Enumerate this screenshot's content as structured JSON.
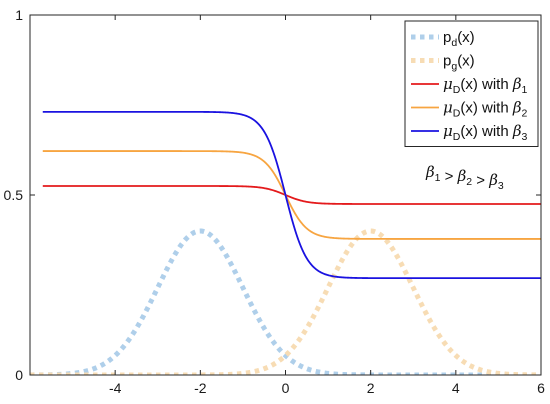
{
  "chart_data": {
    "type": "line",
    "title": "",
    "xlabel": "",
    "ylabel": "",
    "xlim": [
      -6,
      6
    ],
    "ylim": [
      0,
      1
    ],
    "x_ticks": [
      -4,
      -2,
      0,
      2,
      4,
      6
    ],
    "x_tick_labels": [
      "-4",
      "-2",
      "0",
      "2",
      "4",
      "6"
    ],
    "y_ticks": [
      0,
      0.5,
      1
    ],
    "y_tick_labels": [
      "0",
      "0.5",
      "1"
    ],
    "grid": false,
    "box": true,
    "legend_position": "top-right",
    "series": [
      {
        "key": "pd",
        "name_parts": [
          "p",
          "d",
          "(x)"
        ],
        "color": "#AFCFEA",
        "style": "dotted",
        "kind": "gaussian",
        "mean": -2,
        "sd": 1,
        "peak": 0.4
      },
      {
        "key": "pg",
        "name_parts": [
          "p",
          "g",
          "(x)"
        ],
        "color": "#F7DCB4",
        "style": "dotted",
        "kind": "gaussian",
        "mean": 2,
        "sd": 1,
        "peak": 0.4
      },
      {
        "key": "mu1",
        "name_parts": [
          "μ",
          "D",
          "(x) with ",
          "β",
          "1"
        ],
        "color": "#E41A1C",
        "style": "solid",
        "kind": "sigmoid-step",
        "left_level": 0.525,
        "right_level": 0.475,
        "center": 0,
        "steepness": 4
      },
      {
        "key": "mu2",
        "name_parts": [
          "μ",
          "D",
          "(x) with ",
          "β",
          "2"
        ],
        "color": "#F7A541",
        "style": "solid",
        "kind": "sigmoid-step",
        "left_level": 0.622,
        "right_level": 0.378,
        "center": 0,
        "steepness": 4
      },
      {
        "key": "mu3",
        "name_parts": [
          "μ",
          "D",
          "(x) with ",
          "β",
          "3"
        ],
        "color": "#1A12E0",
        "style": "solid",
        "kind": "sigmoid-step",
        "left_level": 0.731,
        "right_level": 0.269,
        "center": 0,
        "steepness": 4
      }
    ],
    "annotation": {
      "parts": [
        "β",
        "1",
        " > ",
        "β",
        "2",
        " > ",
        "β",
        "3"
      ]
    }
  }
}
